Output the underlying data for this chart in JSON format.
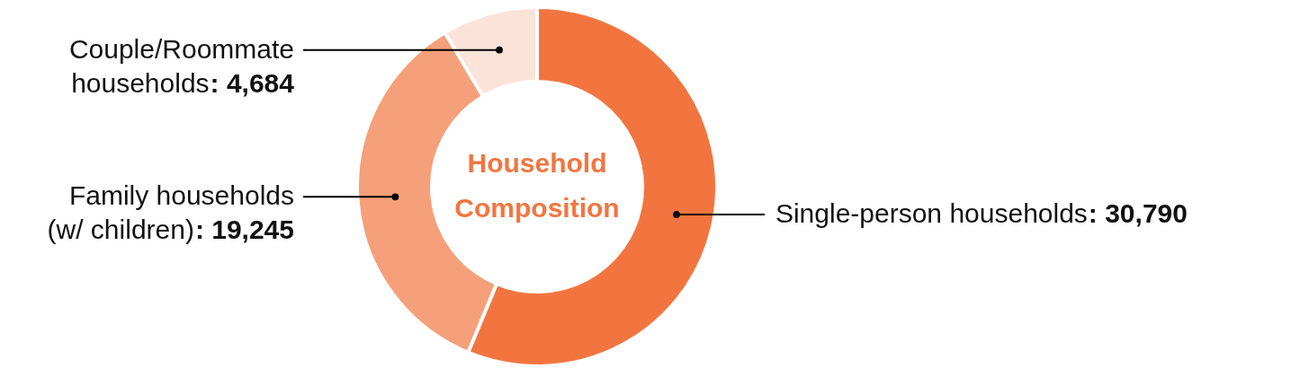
{
  "chart_data": {
    "type": "donut",
    "title": "Household Composition",
    "categories": [
      "Single-person households",
      "Family households (w/ children)",
      "Couple/Roommate households"
    ],
    "values": [
      30790,
      19245,
      4684
    ],
    "colors": [
      "#f27540",
      "#f5a07a",
      "#fce3da"
    ],
    "value_labels": [
      ": 30,790",
      ": 19,245",
      ": 4,684"
    ]
  }
}
